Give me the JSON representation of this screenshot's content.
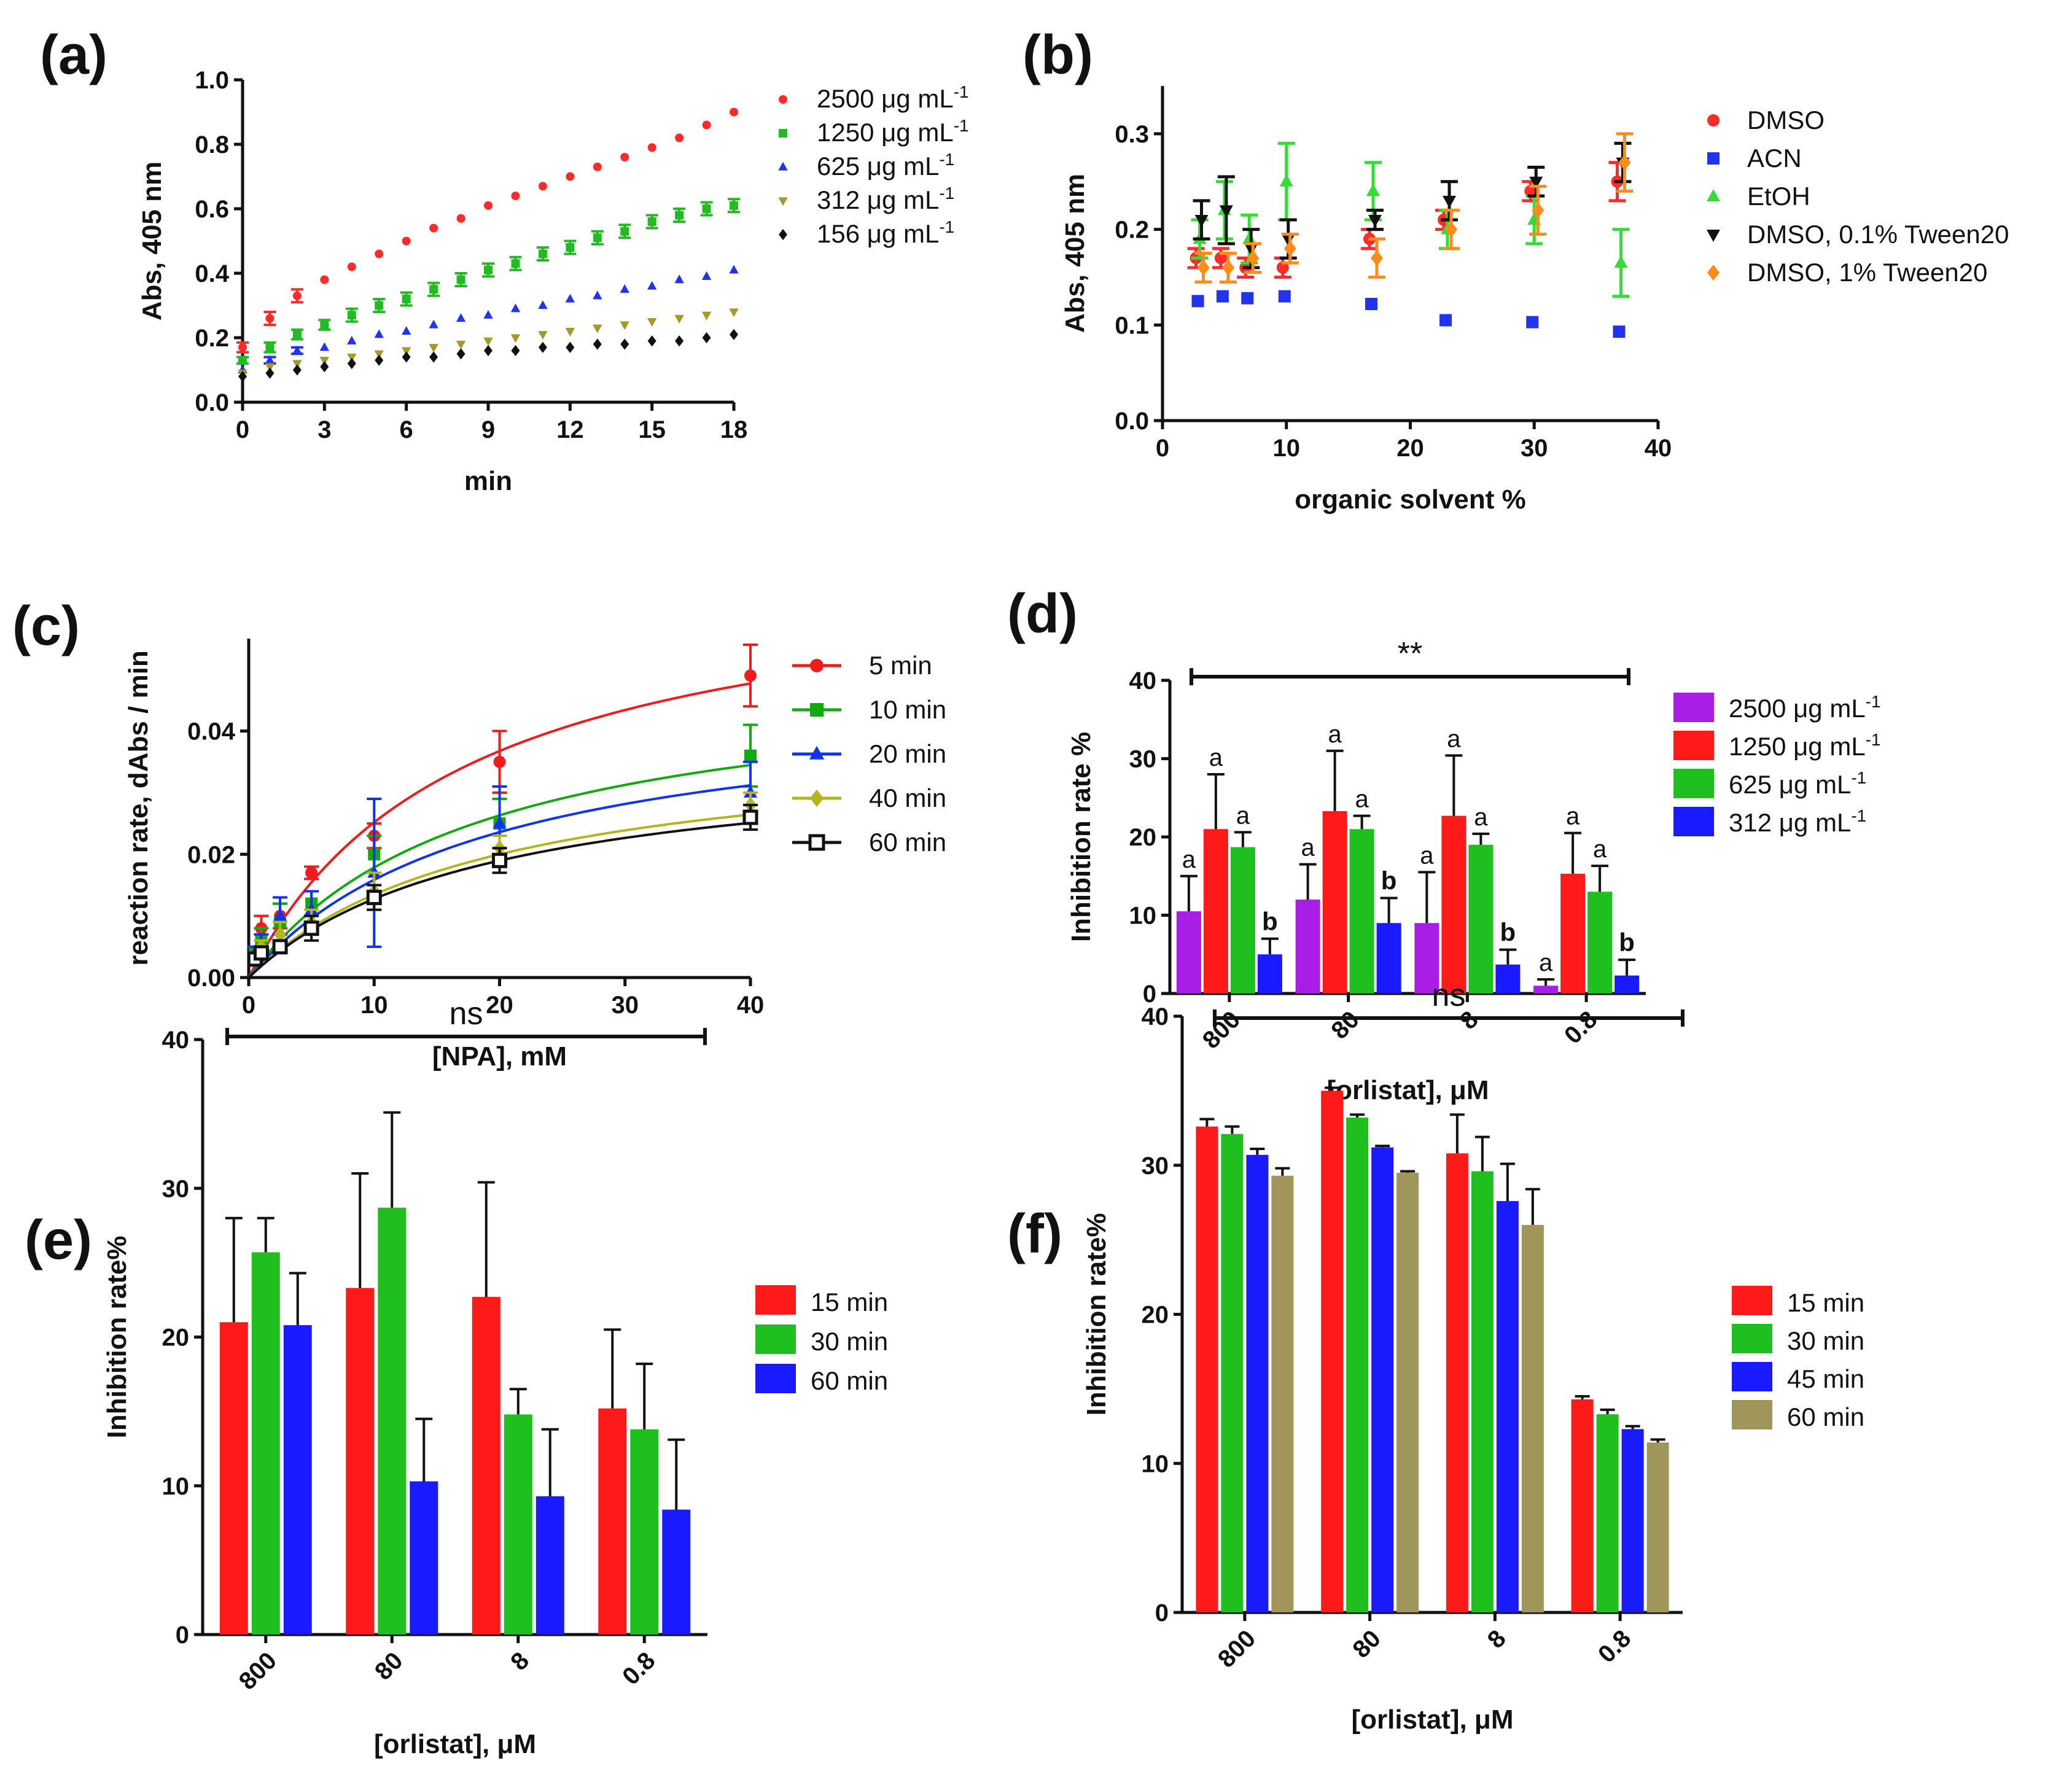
{
  "chart_data": [
    {
      "panel": "(a)",
      "type": "scatter",
      "xlabel": "min",
      "ylabel": "Abs, 405 nm",
      "xlim": [
        0,
        18
      ],
      "ylim": [
        0,
        1.0
      ],
      "xticks": [
        "0",
        "3",
        "6",
        "9",
        "12",
        "15",
        "18"
      ],
      "yticks": [
        "0.0",
        "0.2",
        "0.4",
        "0.6",
        "0.8",
        "1.0"
      ],
      "x": [
        0,
        1,
        2,
        3,
        4,
        5,
        6,
        7,
        8,
        9,
        10,
        11,
        12,
        13,
        14,
        15,
        16,
        17,
        18
      ],
      "legend": [
        "2500 μg mL-1",
        "1250 μg mL-1",
        "625 μg mL-1",
        "312 μg mL-1",
        "156 μg mL-1"
      ],
      "series": [
        {
          "name": "2500 μg mL-1",
          "color": "#ff2a2a",
          "marker": "circle",
          "values": [
            0.17,
            0.26,
            0.33,
            0.38,
            0.42,
            0.46,
            0.5,
            0.54,
            0.57,
            0.61,
            0.64,
            0.67,
            0.7,
            0.73,
            0.76,
            0.79,
            0.82,
            0.86,
            0.9
          ],
          "errors": [
            0.015,
            0.02,
            0.02,
            0,
            0,
            0,
            0,
            0,
            0,
            0,
            0,
            0,
            0,
            0,
            0,
            0,
            0,
            0,
            0
          ]
        },
        {
          "name": "1250 μg mL-1",
          "color": "#22bb22",
          "marker": "square",
          "values": [
            0.13,
            0.17,
            0.21,
            0.24,
            0.27,
            0.3,
            0.32,
            0.35,
            0.38,
            0.41,
            0.43,
            0.46,
            0.48,
            0.51,
            0.53,
            0.56,
            0.58,
            0.6,
            0.61
          ],
          "errors": [
            0.01,
            0.015,
            0.015,
            0.015,
            0.02,
            0.02,
            0.02,
            0.02,
            0.02,
            0.02,
            0.02,
            0.02,
            0.02,
            0.02,
            0.02,
            0.02,
            0.02,
            0.02,
            0.02
          ]
        },
        {
          "name": "625 μg mL-1",
          "color": "#2233ee",
          "marker": "triangle",
          "values": [
            0.1,
            0.13,
            0.16,
            0.17,
            0.19,
            0.21,
            0.22,
            0.24,
            0.26,
            0.27,
            0.29,
            0.3,
            0.32,
            0.33,
            0.35,
            0.36,
            0.38,
            0.39,
            0.41
          ],
          "errors": [
            0,
            0.01,
            0.01,
            0,
            0,
            0,
            0,
            0,
            0,
            0,
            0,
            0,
            0,
            0,
            0,
            0,
            0,
            0,
            0
          ]
        },
        {
          "name": "312 μg mL-1",
          "color": "#a39a2a",
          "marker": "triangle-down",
          "values": [
            0.09,
            0.11,
            0.12,
            0.13,
            0.14,
            0.15,
            0.16,
            0.17,
            0.18,
            0.19,
            0.2,
            0.21,
            0.22,
            0.23,
            0.24,
            0.25,
            0.26,
            0.27,
            0.28
          ]
        },
        {
          "name": "156 μg mL-1",
          "color": "#111111",
          "marker": "diamond",
          "values": [
            0.08,
            0.09,
            0.1,
            0.11,
            0.12,
            0.13,
            0.14,
            0.14,
            0.15,
            0.16,
            0.16,
            0.17,
            0.17,
            0.18,
            0.18,
            0.19,
            0.19,
            0.2,
            0.21
          ]
        }
      ]
    },
    {
      "panel": "(b)",
      "type": "scatter",
      "xlabel": "organic solvent %",
      "ylabel": "Abs, 405 nm",
      "xlim": [
        0,
        40
      ],
      "ylim": [
        0,
        0.35
      ],
      "xticks": [
        "0",
        "10",
        "20",
        "30",
        "40"
      ],
      "yticks": [
        "0.0",
        "0.1",
        "0.2",
        "0.3"
      ],
      "x": [
        3,
        5,
        7,
        10,
        17,
        23,
        30,
        37
      ],
      "legend": [
        "DMSO",
        "ACN",
        "EtOH",
        "DMSO, 0.1% Tween20",
        "DMSO, 1% Tween20"
      ],
      "series": [
        {
          "name": "DMSO",
          "color": "#ff2a2a",
          "marker": "circle",
          "values": [
            0.17,
            0.17,
            0.16,
            0.16,
            0.19,
            0.21,
            0.24,
            0.25
          ],
          "errors": [
            0.01,
            0.01,
            0.01,
            0.01,
            0.01,
            0.01,
            0.01,
            0.02
          ]
        },
        {
          "name": "ACN",
          "color": "#2233ee",
          "marker": "square",
          "values": [
            0.125,
            0.13,
            0.128,
            0.13,
            0.122,
            0.105,
            0.103,
            0.093
          ],
          "errors": [
            0,
            0,
            0,
            0,
            0,
            0,
            0,
            0
          ]
        },
        {
          "name": "EtOH",
          "color": "#33dd33",
          "marker": "triangle",
          "values": [
            0.19,
            0.22,
            0.19,
            0.25,
            0.24,
            0.2,
            0.21,
            0.165
          ],
          "errors": [
            0.02,
            0.03,
            0.025,
            0.04,
            0.03,
            0.02,
            0.025,
            0.035
          ]
        },
        {
          "name": "DMSO, 0.1% Tween20",
          "color": "#111111",
          "marker": "triangle-down",
          "values": [
            0.21,
            0.22,
            0.18,
            0.19,
            0.21,
            0.23,
            0.25,
            0.27
          ],
          "errors": [
            0.02,
            0.035,
            0.02,
            0.02,
            0.01,
            0.02,
            0.015,
            0.02
          ]
        },
        {
          "name": "DMSO, 1% Tween20",
          "color": "#ff8c1a",
          "marker": "diamond",
          "values": [
            0.16,
            0.16,
            0.17,
            0.18,
            0.17,
            0.2,
            0.22,
            0.27
          ],
          "errors": [
            0.015,
            0.015,
            0.015,
            0.015,
            0.02,
            0.02,
            0.025,
            0.03
          ]
        }
      ]
    },
    {
      "panel": "(c)",
      "type": "line",
      "xlabel": "[NPA], mM",
      "ylabel": "reaction rate, dAbs / min",
      "xlim": [
        0,
        40
      ],
      "ylim": [
        0,
        0.055
      ],
      "xticks": [
        "0",
        "10",
        "20",
        "30",
        "40"
      ],
      "yticks": [
        "0.00",
        "0.02",
        "0.04"
      ],
      "x": [
        0.5,
        1,
        2.5,
        5,
        10,
        20,
        40
      ],
      "legend": [
        "5 min",
        "10 min",
        "20 min",
        "40 min",
        "60 min"
      ],
      "series": [
        {
          "name": "5 min",
          "color": "#ee1c1c",
          "marker": "circle",
          "vmax": 0.068,
          "km": 17,
          "values": [
            0.004,
            0.008,
            0.01,
            0.017,
            0.023,
            0.035,
            0.049
          ],
          "errors": [
            0.001,
            0.002,
            0.002,
            0.001,
            0.002,
            0.005,
            0.005
          ]
        },
        {
          "name": "10 min",
          "color": "#11aa11",
          "marker": "square",
          "vmax": 0.05,
          "km": 18,
          "values": [
            0.004,
            0.006,
            0.009,
            0.012,
            0.02,
            0.025,
            0.036
          ],
          "errors": [
            0.001,
            0.002,
            0.003,
            0.002,
            0.003,
            0.004,
            0.005
          ]
        },
        {
          "name": "20 min",
          "color": "#1133ee",
          "marker": "triangle",
          "vmax": 0.046,
          "km": 19,
          "values": [
            0.004,
            0.005,
            0.01,
            0.011,
            0.017,
            0.025,
            0.03
          ],
          "errors": [
            0.001,
            0.002,
            0.003,
            0.003,
            0.012,
            0.006,
            0.005
          ]
        },
        {
          "name": "40 min",
          "color": "#b5b51e",
          "marker": "diamond",
          "vmax": 0.039,
          "km": 19,
          "values": [
            0.003,
            0.005,
            0.007,
            0.009,
            0.014,
            0.021,
            0.028
          ],
          "errors": [
            0.001,
            0.001,
            0.002,
            0.002,
            0.003,
            0.002,
            0.002
          ]
        },
        {
          "name": "60 min",
          "color": "#111111",
          "marker": "square-open",
          "vmax": 0.037,
          "km": 19,
          "values": [
            0.003,
            0.004,
            0.005,
            0.008,
            0.013,
            0.019,
            0.026
          ],
          "errors": [
            0.001,
            0.001,
            0.001,
            0.002,
            0.002,
            0.002,
            0.002
          ]
        }
      ]
    },
    {
      "panel": "(d)",
      "type": "bar",
      "xlabel": "[orlistat], μM",
      "ylabel": "Inhibition rate %",
      "ylim": [
        0,
        40
      ],
      "yticks": [
        "0",
        "10",
        "20",
        "30",
        "40"
      ],
      "categories": [
        "800",
        "80",
        "8",
        "0.8"
      ],
      "significance": "**",
      "legend": [
        "2500 μg mL-1",
        "1250 μg mL-1",
        "625 μg mL-1",
        "312 μg mL-1"
      ],
      "series": [
        {
          "name": "2500 μg mL-1",
          "color": "#a81ee6",
          "values": [
            10.5,
            12.0,
            9.0,
            1.0
          ],
          "errors": [
            4.5,
            4.5,
            6.5,
            0.8
          ],
          "letters": [
            "a",
            "a",
            "a",
            "a"
          ]
        },
        {
          "name": "1250 μg mL-1",
          "color": "#ff1a1a",
          "values": [
            21.0,
            23.3,
            22.7,
            15.3
          ],
          "errors": [
            7.0,
            7.7,
            7.7,
            5.2
          ],
          "letters": [
            "a",
            "a",
            "a",
            "a"
          ]
        },
        {
          "name": "625 μg mL-1",
          "color": "#1fbf1f",
          "values": [
            18.7,
            21.0,
            19.0,
            13.0
          ],
          "errors": [
            1.9,
            1.7,
            1.4,
            3.3
          ],
          "letters": [
            "a",
            "a",
            "a",
            "a"
          ]
        },
        {
          "name": "312 μg mL-1",
          "color": "#1a1aff",
          "values": [
            5.0,
            9.0,
            3.7,
            2.3
          ],
          "errors": [
            2.0,
            3.2,
            1.9,
            2.0
          ],
          "letters": [
            "b",
            "b",
            "b",
            "b"
          ]
        }
      ]
    },
    {
      "panel": "(e)",
      "type": "bar",
      "xlabel": "[orlistat], μM",
      "ylabel": "Inhibition rate%",
      "ylim": [
        0,
        40
      ],
      "yticks": [
        "0",
        "10",
        "20",
        "30",
        "40"
      ],
      "categories": [
        "800",
        "80",
        "8",
        "0.8"
      ],
      "significance": "ns",
      "legend": [
        "15 min",
        "30 min",
        "60 min"
      ],
      "series": [
        {
          "name": "15 min",
          "color": "#ff1a1a",
          "values": [
            21.0,
            23.3,
            22.7,
            15.2
          ],
          "errors": [
            7.0,
            7.7,
            7.7,
            5.3
          ]
        },
        {
          "name": "30 min",
          "color": "#1fbf1f",
          "values": [
            25.7,
            28.7,
            14.8,
            13.8
          ],
          "errors": [
            2.3,
            6.4,
            1.7,
            4.4
          ]
        },
        {
          "name": "60 min",
          "color": "#1a1aff",
          "values": [
            20.8,
            10.3,
            9.3,
            8.4
          ],
          "errors": [
            3.5,
            4.2,
            4.5,
            4.7
          ]
        }
      ]
    },
    {
      "panel": "(f)",
      "type": "bar",
      "xlabel": "[orlistat], μM",
      "ylabel": "Inhibition rate%",
      "ylim": [
        0,
        40
      ],
      "yticks": [
        "0",
        "10",
        "20",
        "30",
        "40"
      ],
      "categories": [
        "800",
        "80",
        "8",
        "0.8"
      ],
      "significance": "ns",
      "legend": [
        "15 min",
        "30 min",
        "45 min",
        "60 min"
      ],
      "series": [
        {
          "name": "15 min",
          "color": "#ff1a1a",
          "values": [
            32.6,
            35.0,
            30.8,
            14.3
          ],
          "errors": [
            0.5,
            0.2,
            2.6,
            0.2
          ]
        },
        {
          "name": "30 min",
          "color": "#1fbf1f",
          "values": [
            32.1,
            33.2,
            29.6,
            13.3
          ],
          "errors": [
            0.5,
            0.2,
            2.3,
            0.3
          ]
        },
        {
          "name": "45 min",
          "color": "#1a1aff",
          "values": [
            30.7,
            31.2,
            27.6,
            12.3
          ],
          "errors": [
            0.4,
            0.1,
            2.5,
            0.2
          ]
        },
        {
          "name": "60 min",
          "color": "#a0955a",
          "values": [
            29.3,
            29.5,
            26.0,
            11.4
          ],
          "errors": [
            0.5,
            0.1,
            2.4,
            0.2
          ]
        }
      ]
    }
  ]
}
